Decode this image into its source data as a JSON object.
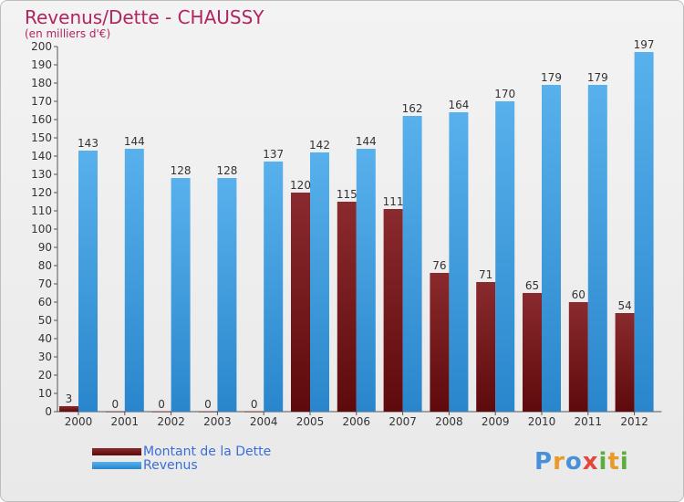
{
  "colors": {
    "debt": "#7a0f14",
    "revenue": "#3f9fe0"
  },
  "logo": {
    "p": "P",
    "r": "r",
    "o": "o",
    "x": "x",
    "i": "i",
    "t": "t",
    "i2": "i"
  },
  "chart_data": {
    "type": "bar",
    "title": "Revenus/Dette - CHAUSSY",
    "subtitle": "(en milliers d'€)",
    "categories": [
      "2000",
      "2001",
      "2002",
      "2003",
      "2004",
      "2005",
      "2006",
      "2007",
      "2008",
      "2009",
      "2010",
      "2011",
      "2012"
    ],
    "series": [
      {
        "name": "Montant de la Dette",
        "values": [
          3,
          0,
          0,
          0,
          0,
          120,
          115,
          111,
          76,
          71,
          65,
          60,
          54
        ]
      },
      {
        "name": "Revenus",
        "values": [
          143,
          144,
          128,
          128,
          137,
          142,
          144,
          162,
          164,
          170,
          179,
          179,
          197
        ]
      }
    ],
    "ylim": [
      0,
      200
    ],
    "ytick_step": 10,
    "grid": false,
    "legend": "bottom-left"
  }
}
